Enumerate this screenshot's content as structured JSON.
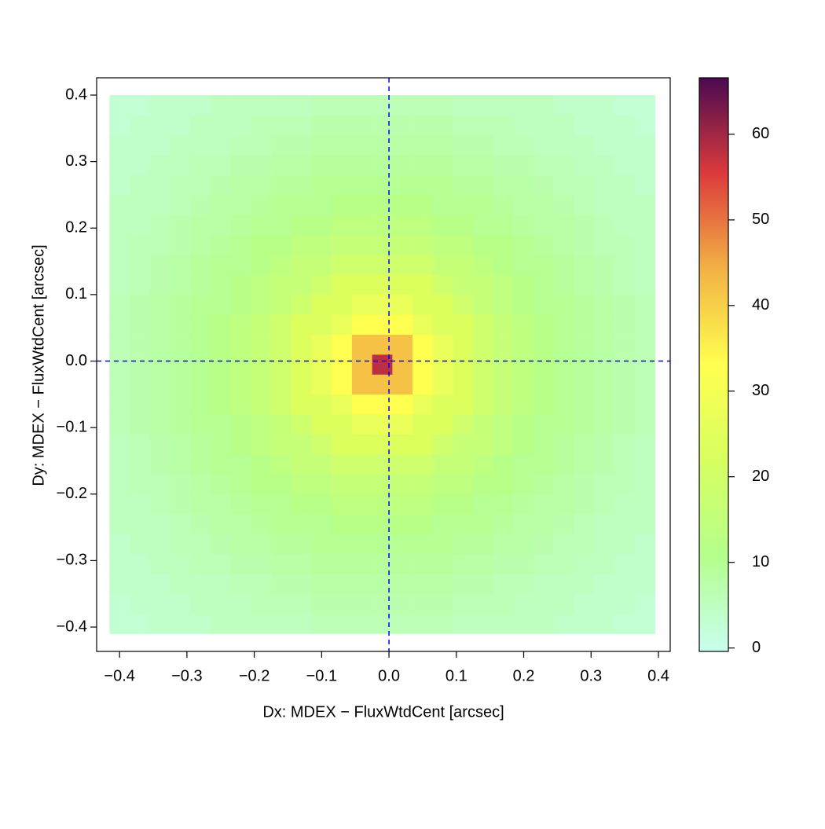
{
  "chart_data": {
    "type": "heatmap",
    "xlabel": "Dx: MDEX − FluxWtdCent [arcsec]",
    "ylabel": "Dy: MDEX − FluxWtdCent [arcsec]",
    "xlim": [
      -0.434,
      0.4175
    ],
    "ylim": [
      -0.4366,
      0.426
    ],
    "xticks": [
      {
        "value": -0.4,
        "label": "−0.4"
      },
      {
        "value": -0.3,
        "label": "−0.3"
      },
      {
        "value": -0.2,
        "label": "−0.2"
      },
      {
        "value": -0.1,
        "label": "−0.1"
      },
      {
        "value": 0,
        "label": "0.0"
      },
      0.1,
      0.2,
      0.3,
      0.4
    ],
    "yticks": [
      {
        "value": -0.4,
        "label": "−0.4"
      },
      {
        "value": -0.3,
        "label": "−0.3"
      },
      {
        "value": -0.2,
        "label": "−0.2"
      },
      {
        "value": -0.1,
        "label": "−0.1"
      },
      {
        "value": 0,
        "label": "0.0"
      },
      0.1,
      0.2,
      0.3,
      0.4
    ],
    "reference_lines": {
      "x": 0,
      "y": 0,
      "color": "#0000ff"
    },
    "xbins": [
      -0.415,
      -0.385,
      -0.355,
      -0.325,
      -0.295,
      -0.265,
      -0.235,
      -0.205,
      -0.175,
      -0.145,
      -0.115,
      -0.085,
      -0.055,
      -0.025,
      0.005,
      0.035,
      0.065,
      0.095,
      0.125,
      0.155,
      0.185,
      0.215,
      0.245,
      0.275,
      0.305,
      0.335,
      0.365,
      0.395
    ],
    "ybins": [
      -0.41,
      -0.38,
      -0.35,
      -0.32,
      -0.29,
      -0.26,
      -0.23,
      -0.2,
      -0.17,
      -0.14,
      -0.11,
      -0.08,
      -0.05,
      -0.02,
      0.01,
      0.04,
      0.07,
      0.1,
      0.13,
      0.16,
      0.19,
      0.22,
      0.25,
      0.28,
      0.31,
      0.34,
      0.37,
      0.4
    ],
    "z": [
      [
        3,
        3,
        4,
        4,
        4,
        5,
        5,
        5,
        5,
        5,
        6,
        6,
        6,
        6,
        6,
        6,
        6,
        5,
        5,
        5,
        5,
        5,
        4,
        4,
        4,
        3,
        3
      ],
      [
        3,
        4,
        4,
        4,
        5,
        5,
        5,
        6,
        6,
        6,
        7,
        7,
        7,
        7,
        7,
        7,
        7,
        6,
        6,
        6,
        5,
        5,
        5,
        4,
        4,
        4,
        3
      ],
      [
        4,
        4,
        4,
        5,
        5,
        5,
        6,
        6,
        7,
        7,
        8,
        8,
        8,
        8,
        8,
        8,
        8,
        7,
        7,
        6,
        6,
        5,
        5,
        5,
        4,
        4,
        4
      ],
      [
        4,
        4,
        5,
        5,
        6,
        6,
        7,
        7,
        8,
        8,
        9,
        9,
        9,
        9,
        9,
        9,
        9,
        8,
        8,
        7,
        7,
        6,
        6,
        5,
        5,
        4,
        4
      ],
      [
        4,
        5,
        5,
        6,
        6,
        7,
        8,
        8,
        9,
        9,
        10,
        10,
        10,
        10,
        10,
        10,
        10,
        9,
        9,
        8,
        8,
        7,
        6,
        6,
        5,
        5,
        4
      ],
      [
        5,
        5,
        5,
        6,
        7,
        8,
        8,
        9,
        10,
        10,
        10,
        12,
        12,
        12,
        12,
        12,
        10,
        10,
        10,
        9,
        8,
        8,
        7,
        6,
        5,
        5,
        5
      ],
      [
        5,
        5,
        6,
        7,
        8,
        8,
        9,
        10,
        10,
        12,
        12,
        14,
        14,
        14,
        14,
        14,
        12,
        12,
        10,
        10,
        9,
        8,
        8,
        7,
        6,
        5,
        5
      ],
      [
        5,
        6,
        6,
        7,
        8,
        9,
        10,
        12,
        12,
        14,
        14,
        16,
        16,
        16,
        16,
        16,
        14,
        14,
        12,
        12,
        10,
        9,
        8,
        7,
        6,
        6,
        5
      ],
      [
        5,
        6,
        7,
        8,
        9,
        10,
        10,
        12,
        14,
        16,
        16,
        19,
        19,
        19,
        19,
        19,
        16,
        16,
        14,
        12,
        10,
        10,
        9,
        8,
        7,
        6,
        5
      ],
      [
        5,
        6,
        7,
        8,
        9,
        10,
        12,
        14,
        16,
        16,
        19,
        23,
        23,
        23,
        23,
        23,
        19,
        16,
        16,
        14,
        12,
        10,
        9,
        8,
        7,
        6,
        5
      ],
      [
        6,
        7,
        8,
        9,
        10,
        10,
        12,
        14,
        16,
        19,
        23,
        23,
        27,
        27,
        27,
        23,
        23,
        19,
        16,
        14,
        12,
        10,
        10,
        9,
        8,
        7,
        6
      ],
      [
        6,
        7,
        8,
        9,
        10,
        12,
        14,
        16,
        19,
        23,
        23,
        27,
        33,
        33,
        33,
        27,
        23,
        23,
        19,
        16,
        14,
        12,
        10,
        9,
        8,
        7,
        6
      ],
      [
        6,
        7,
        8,
        9,
        10,
        12,
        14,
        16,
        19,
        23,
        27,
        33,
        42,
        42,
        42,
        33,
        27,
        23,
        19,
        16,
        14,
        12,
        10,
        9,
        8,
        7,
        6
      ],
      [
        6,
        7,
        8,
        9,
        10,
        12,
        14,
        16,
        19,
        23,
        27,
        33,
        42,
        58,
        42,
        33,
        27,
        23,
        19,
        16,
        14,
        12,
        10,
        9,
        8,
        7,
        6
      ],
      [
        6,
        7,
        8,
        9,
        10,
        12,
        14,
        16,
        19,
        23,
        27,
        33,
        42,
        42,
        42,
        33,
        27,
        23,
        19,
        16,
        14,
        12,
        10,
        9,
        8,
        7,
        6
      ],
      [
        6,
        7,
        8,
        9,
        10,
        12,
        14,
        16,
        19,
        23,
        23,
        27,
        33,
        33,
        33,
        27,
        23,
        23,
        19,
        16,
        14,
        12,
        10,
        9,
        8,
        7,
        6
      ],
      [
        6,
        7,
        8,
        9,
        10,
        10,
        12,
        14,
        16,
        19,
        23,
        23,
        27,
        27,
        27,
        23,
        23,
        19,
        16,
        14,
        12,
        10,
        10,
        9,
        8,
        7,
        6
      ],
      [
        5,
        6,
        7,
        8,
        9,
        10,
        12,
        14,
        16,
        16,
        19,
        23,
        23,
        23,
        23,
        23,
        19,
        16,
        16,
        14,
        12,
        10,
        9,
        8,
        7,
        6,
        5
      ],
      [
        5,
        6,
        7,
        8,
        9,
        10,
        10,
        12,
        14,
        16,
        16,
        19,
        19,
        19,
        19,
        19,
        16,
        16,
        14,
        12,
        10,
        10,
        9,
        8,
        7,
        6,
        5
      ],
      [
        5,
        6,
        6,
        7,
        8,
        9,
        10,
        12,
        12,
        14,
        14,
        16,
        16,
        16,
        16,
        16,
        14,
        14,
        12,
        12,
        10,
        9,
        8,
        7,
        6,
        6,
        5
      ],
      [
        5,
        5,
        6,
        7,
        8,
        8,
        9,
        10,
        10,
        12,
        12,
        14,
        14,
        14,
        14,
        14,
        12,
        12,
        10,
        10,
        9,
        8,
        8,
        7,
        6,
        5,
        5
      ],
      [
        5,
        5,
        5,
        6,
        7,
        8,
        8,
        9,
        10,
        10,
        10,
        12,
        12,
        12,
        12,
        12,
        10,
        10,
        10,
        9,
        8,
        8,
        7,
        6,
        5,
        5,
        5
      ],
      [
        4,
        5,
        5,
        6,
        6,
        7,
        8,
        8,
        9,
        9,
        10,
        10,
        10,
        10,
        10,
        10,
        10,
        9,
        9,
        8,
        8,
        7,
        6,
        6,
        5,
        5,
        4
      ],
      [
        4,
        4,
        5,
        5,
        6,
        6,
        7,
        7,
        8,
        8,
        9,
        9,
        9,
        9,
        9,
        9,
        9,
        8,
        8,
        7,
        7,
        6,
        6,
        5,
        5,
        4,
        4
      ],
      [
        4,
        4,
        4,
        5,
        5,
        5,
        6,
        6,
        7,
        7,
        8,
        8,
        8,
        8,
        8,
        8,
        8,
        7,
        7,
        6,
        6,
        5,
        5,
        5,
        4,
        4,
        4
      ],
      [
        3,
        4,
        4,
        4,
        5,
        5,
        5,
        6,
        6,
        6,
        7,
        7,
        7,
        7,
        7,
        7,
        7,
        6,
        6,
        6,
        5,
        5,
        5,
        4,
        4,
        4,
        3
      ],
      [
        3,
        3,
        4,
        4,
        4,
        5,
        5,
        5,
        5,
        5,
        6,
        6,
        6,
        6,
        6,
        6,
        6,
        5,
        5,
        5,
        5,
        5,
        4,
        4,
        4,
        3,
        3
      ]
    ],
    "clim": [
      -0.4,
      66.6
    ],
    "cticks": [
      0,
      10,
      20,
      30,
      40,
      50,
      60
    ],
    "colors": [
      "#c8fff0",
      "#b4ff8c",
      "#d8ff60",
      "#ffff50",
      "#f2b244",
      "#dc3a3c",
      "#4a0a50"
    ]
  }
}
